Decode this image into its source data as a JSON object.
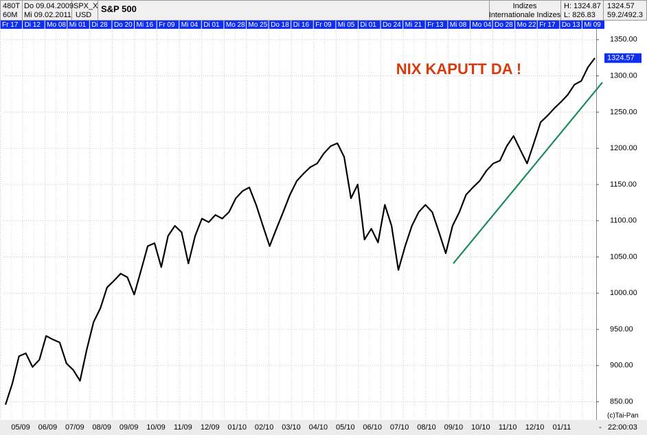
{
  "header": {
    "bars": "480T",
    "start": "Do 09.04.2009",
    "symbol": "SPX_X",
    "name": "S&P 500",
    "interval": "60M",
    "end": "Mi 09.02.2011",
    "currency": "USD",
    "group": "Indizes",
    "subgroup": "Internationale Indizes",
    "high": "H: 1324.87",
    "low": "L: 826.83",
    "last": "1324.57",
    "ratio": "59.2/492.3"
  },
  "footer": {
    "copyright": "(c)Tai-Pan",
    "time": "22:00:03",
    "dash": "-"
  },
  "ribbon": [
    "Fr 17",
    "Di 12",
    "Mo 08",
    "Mi 01",
    "Di 28",
    "Do 20",
    "Mi 16",
    "Fr 09",
    "Mi 04",
    "Di 01",
    "Mo 28",
    "Mo 25",
    "Do 18",
    "Di 16",
    "Fr 09",
    "Mi 05",
    "Di 01",
    "Do 24",
    "Mi 21",
    "Fr 13",
    "Mi 08",
    "Mo 04",
    "Do 28",
    "Mo 22",
    "Fr 17",
    "Do 13",
    "Mi 09"
  ],
  "chart_data": {
    "type": "line",
    "title": "S&P 500",
    "annotation": "NIX KAPUTT DA !",
    "annotation_color": "#d83a10",
    "color": "#000000",
    "values": [
      846,
      875,
      913,
      917,
      898,
      908,
      941,
      936,
      932,
      903,
      894,
      879,
      922,
      960,
      979,
      1008,
      1017,
      1027,
      1022,
      998,
      1031,
      1065,
      1069,
      1036,
      1079,
      1093,
      1084,
      1041,
      1079,
      1103,
      1098,
      1108,
      1103,
      1112,
      1131,
      1141,
      1146,
      1122,
      1093,
      1065,
      1089,
      1112,
      1136,
      1155,
      1165,
      1174,
      1179,
      1193,
      1203,
      1207,
      1188,
      1131,
      1150,
      1074,
      1089,
      1070,
      1122,
      1093,
      1032,
      1065,
      1093,
      1112,
      1122,
      1112,
      1084,
      1055,
      1093,
      1112,
      1136,
      1146,
      1155,
      1169,
      1179,
      1183,
      1203,
      1217,
      1198,
      1179,
      1207,
      1236,
      1245,
      1255,
      1264,
      1274,
      1288,
      1293,
      1312,
      1324.57
    ],
    "last_label": "1324.57",
    "trendline": {
      "color": "#1b8a5a",
      "values": [
        1041,
        1291
      ]
    },
    "x_labels": [
      "05/09",
      "06/09",
      "07/09",
      "08/09",
      "09/09",
      "10/09",
      "11/09",
      "12/09",
      "01/10",
      "02/10",
      "03/10",
      "04/10",
      "05/10",
      "06/10",
      "07/10",
      "08/10",
      "09/10",
      "10/10",
      "11/10",
      "12/10",
      "01/11"
    ],
    "ylim": [
      825,
      1365
    ],
    "yticks": [
      {
        "value": 850,
        "label": "850.00"
      },
      {
        "value": 900,
        "label": "900.00"
      },
      {
        "value": 950,
        "label": "950.00"
      },
      {
        "value": 1000,
        "label": "1000.00"
      },
      {
        "value": 1050,
        "label": "1050.00"
      },
      {
        "value": 1100,
        "label": "1100.00"
      },
      {
        "value": 1150,
        "label": "1150.00"
      },
      {
        "value": 1200,
        "label": "1200.00"
      },
      {
        "value": 1250,
        "label": "1250.00"
      },
      {
        "value": 1300,
        "label": "1300.00"
      },
      {
        "value": 1350,
        "label": "1350.00"
      }
    ],
    "grid": true
  }
}
